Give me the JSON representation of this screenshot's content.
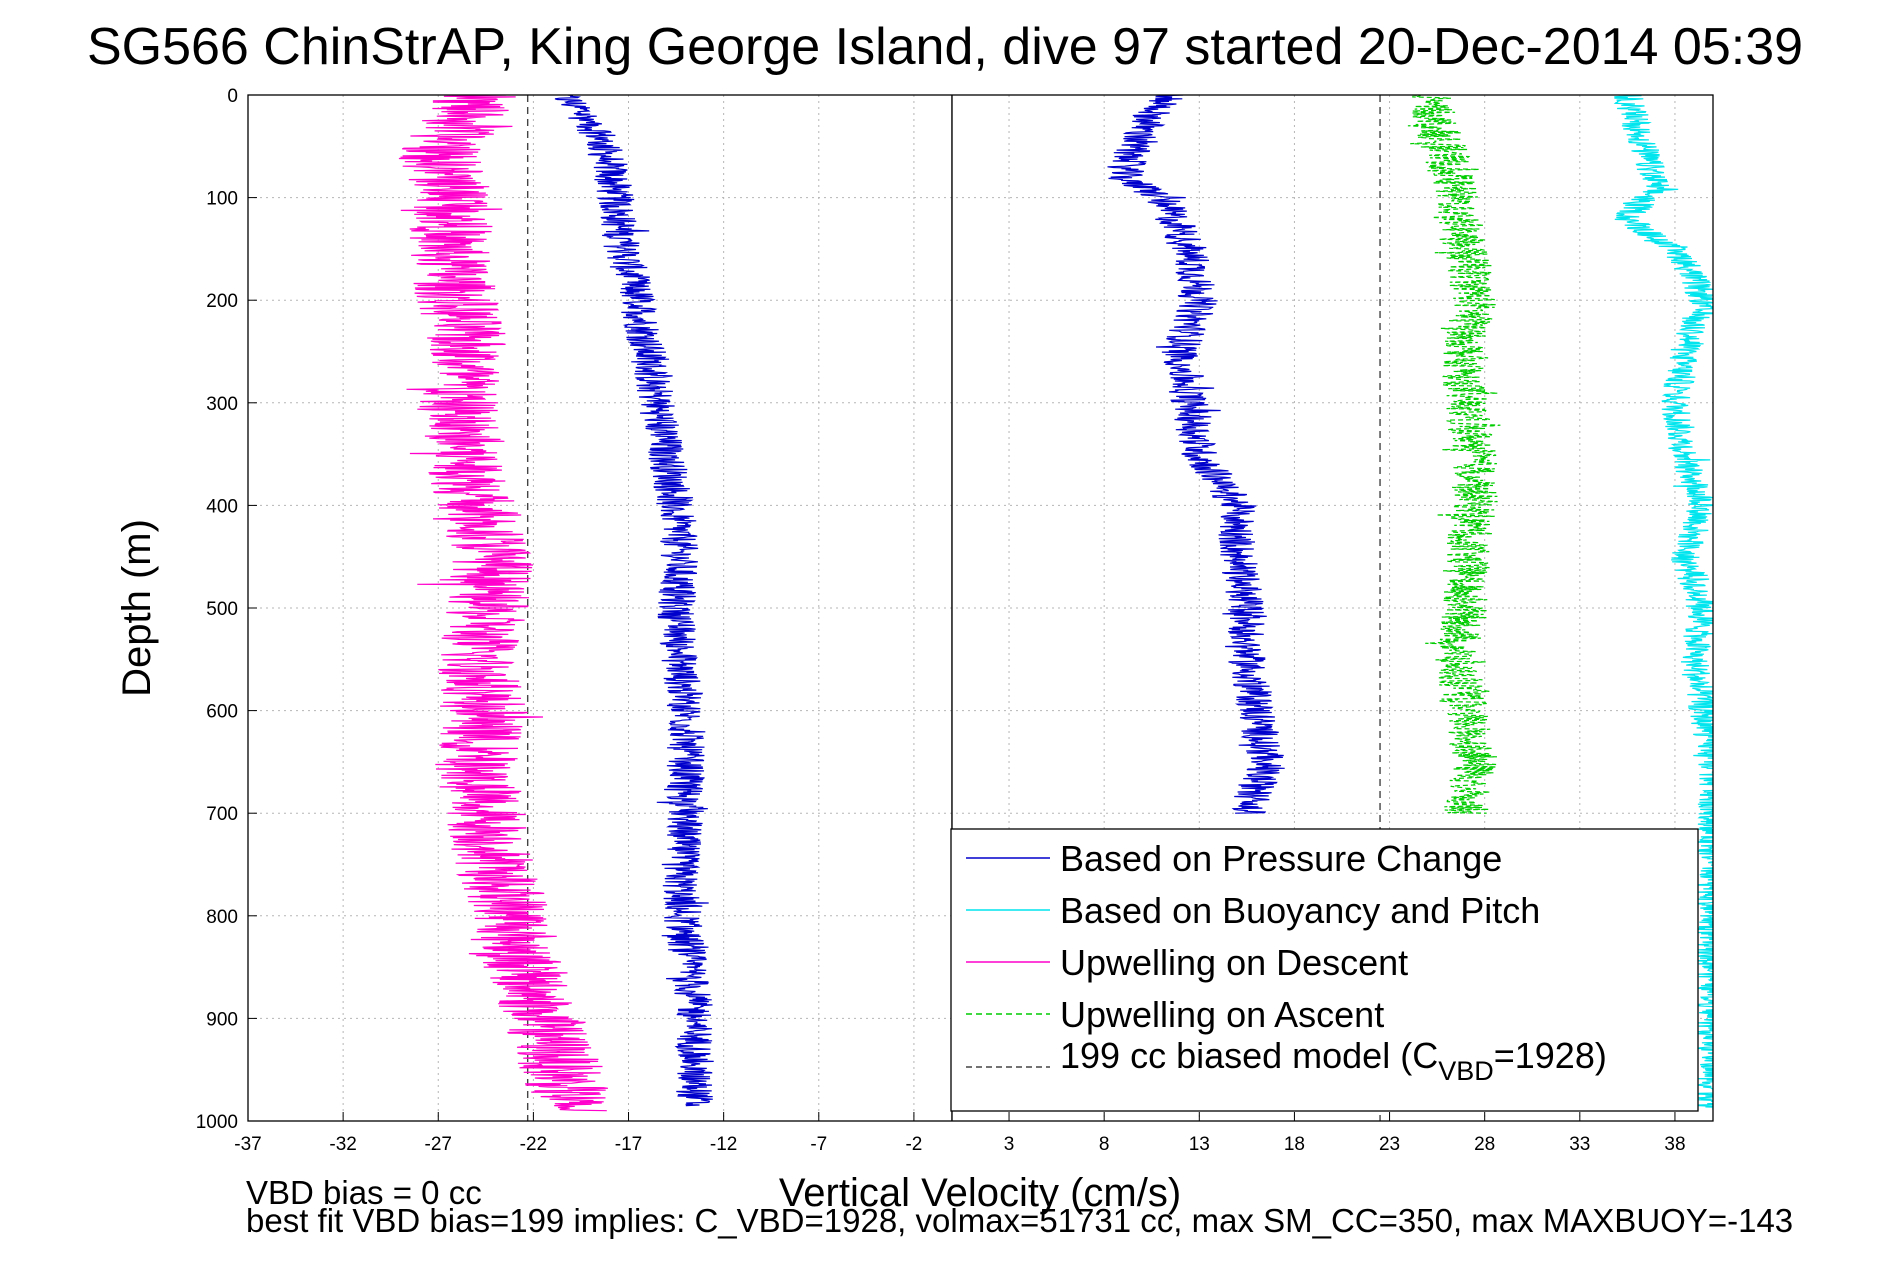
{
  "chart_data": {
    "type": "line",
    "title": "SG566 ChinStrAP, King George Island, dive 97 started 20-Dec-2014 05:39",
    "xlabel": "Vertical Velocity (cm/s)",
    "ylabel": "Depth (m)",
    "xlim": [
      -37,
      40
    ],
    "ylim": [
      0,
      1000
    ],
    "y_reversed": true,
    "grid": true,
    "xticks": [
      -37,
      -32,
      -27,
      -22,
      -17,
      -12,
      -7,
      -2,
      3,
      8,
      13,
      18,
      23,
      28,
      33,
      38
    ],
    "yticks": [
      0,
      100,
      200,
      300,
      400,
      500,
      600,
      700,
      800,
      900,
      1000
    ],
    "legend_position": "bottom-right",
    "legend": [
      {
        "label": "Based on Pressure Change",
        "color": "#0000cc",
        "style": "solid"
      },
      {
        "label": "Based on Buoyancy and Pitch",
        "color": "#00e5ee",
        "style": "solid"
      },
      {
        "label": "Upwelling on Descent",
        "color": "#ff00cc",
        "style": "solid"
      },
      {
        "label": "Upwelling on Ascent",
        "color": "#00cc00",
        "style": "dashed"
      },
      {
        "label_pre": "199 cc biased model (C",
        "label_sub": "VBD",
        "label_post": "=1928)",
        "color": "#444444",
        "style": "dashed"
      }
    ],
    "series": [
      {
        "name": "Based on Pressure Change (descent)",
        "color": "#0000cc",
        "style": "solid",
        "noise": 1.0,
        "depth": [
          0,
          15,
          40,
          70,
          100,
          150,
          200,
          250,
          300,
          350,
          400,
          450,
          500,
          550,
          600,
          650,
          700,
          750,
          800,
          850,
          900,
          950,
          985
        ],
        "velocity": [
          -20.5,
          -19.5,
          -18.5,
          -18.0,
          -17.7,
          -17.3,
          -16.5,
          -16.0,
          -15.5,
          -15.0,
          -14.5,
          -14.3,
          -14.5,
          -14.3,
          -14.0,
          -14.0,
          -14.0,
          -14.3,
          -14.2,
          -13.8,
          -13.5,
          -13.5,
          -13.5
        ]
      },
      {
        "name": "Based on Pressure Change (ascent)",
        "color": "#0000cc",
        "style": "solid",
        "noise": 1.0,
        "depth": [
          0,
          20,
          50,
          80,
          100,
          150,
          200,
          250,
          300,
          350,
          400,
          450,
          500,
          550,
          600,
          650,
          700
        ],
        "velocity": [
          11.5,
          10.5,
          9.5,
          9.0,
          11.0,
          12.5,
          13.0,
          12.0,
          12.5,
          13.0,
          15.0,
          15.0,
          15.5,
          15.5,
          16.0,
          16.5,
          15.5
        ]
      },
      {
        "name": "Based on Buoyancy and Pitch",
        "color": "#00e5ee",
        "style": "solid",
        "noise": 0.8,
        "depth": [
          0,
          30,
          60,
          90,
          120,
          160,
          200,
          250,
          300,
          350,
          400,
          450,
          500,
          550,
          600,
          650,
          700,
          750,
          800,
          850,
          900,
          950,
          990
        ],
        "velocity": [
          35.5,
          36.0,
          36.5,
          37.0,
          35.5,
          38.5,
          39.5,
          38.5,
          38.0,
          38.5,
          39.5,
          38.5,
          39.5,
          39.0,
          39.5,
          40.0,
          40.0,
          40.0,
          40.0,
          40.0,
          40.0,
          40.0,
          40.0
        ]
      },
      {
        "name": "Upwelling on Descent",
        "color": "#ff00cc",
        "style": "solid",
        "noise": 2.2,
        "depth": [
          0,
          30,
          60,
          100,
          150,
          200,
          250,
          300,
          350,
          400,
          450,
          500,
          550,
          600,
          650,
          700,
          750,
          800,
          850,
          900,
          950,
          990
        ],
        "velocity": [
          -25.0,
          -26.0,
          -27.0,
          -26.0,
          -26.5,
          -26.0,
          -25.5,
          -26.0,
          -25.5,
          -25.0,
          -24.0,
          -24.5,
          -25.0,
          -24.5,
          -25.0,
          -24.5,
          -24.0,
          -23.0,
          -22.5,
          -21.5,
          -20.5,
          -20.0
        ]
      },
      {
        "name": "Upwelling on Ascent",
        "color": "#00cc00",
        "style": "dashed",
        "noise": 1.2,
        "depth": [
          0,
          30,
          60,
          100,
          150,
          200,
          250,
          300,
          350,
          400,
          450,
          500,
          550,
          600,
          650,
          700
        ],
        "velocity": [
          25.0,
          25.5,
          26.0,
          26.5,
          27.0,
          27.5,
          27.0,
          27.0,
          27.5,
          27.5,
          27.0,
          27.0,
          26.5,
          27.0,
          27.5,
          27.0
        ]
      }
    ],
    "reference_lines": [
      {
        "name": "biased model descent",
        "x": -22.3,
        "color": "#444444",
        "style": "dashed"
      },
      {
        "name": "biased model ascent",
        "x": 22.5,
        "color": "#444444",
        "style": "dashed"
      },
      {
        "name": "zero velocity",
        "x": 0,
        "color": "#000000",
        "style": "solid"
      }
    ]
  },
  "footer": {
    "line1": "VBD bias = 0 cc",
    "line2": "best fit VBD bias=199 implies: C_VBD=1928, volmax=51731 cc, max SM_CC=350, max MAXBUOY=-143"
  }
}
